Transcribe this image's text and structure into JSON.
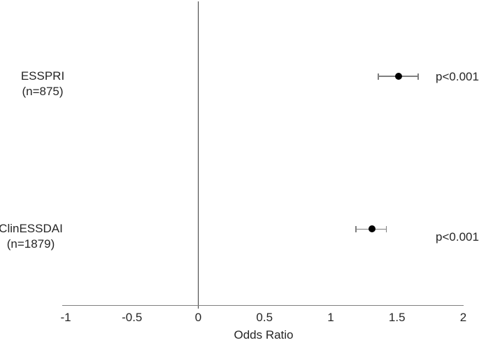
{
  "chart_data": {
    "type": "forest_plot",
    "title": "",
    "xlabel": "Odds Ratio",
    "xlim": [
      -1,
      2
    ],
    "xticks": [
      -1,
      -0.5,
      0,
      0.5,
      1,
      1.5,
      2
    ],
    "xtick_labels": [
      "-1",
      "-0.5",
      "0",
      "0.5",
      "1",
      "1.5",
      "2"
    ],
    "reference_line_x": 0,
    "grid": false,
    "legend": "none",
    "series": [
      {
        "label": "ESSPRI",
        "sublabel": "(n=875)",
        "odds_ratio": 1.51,
        "ci_low": 1.36,
        "ci_high": 1.66,
        "p_value_label": "p<0.001"
      },
      {
        "label": "ClinESSDAI",
        "sublabel": "(n=1879)",
        "odds_ratio": 1.31,
        "ci_low": 1.19,
        "ci_high": 1.42,
        "p_value_label": "p<0.001"
      }
    ],
    "colors": {
      "marker": "#000000",
      "error_bar": "#7f7f7f",
      "axis_line": "#808080",
      "reference_line": "#3a3a3a",
      "text": "#262626",
      "background": "#ffffff"
    }
  }
}
